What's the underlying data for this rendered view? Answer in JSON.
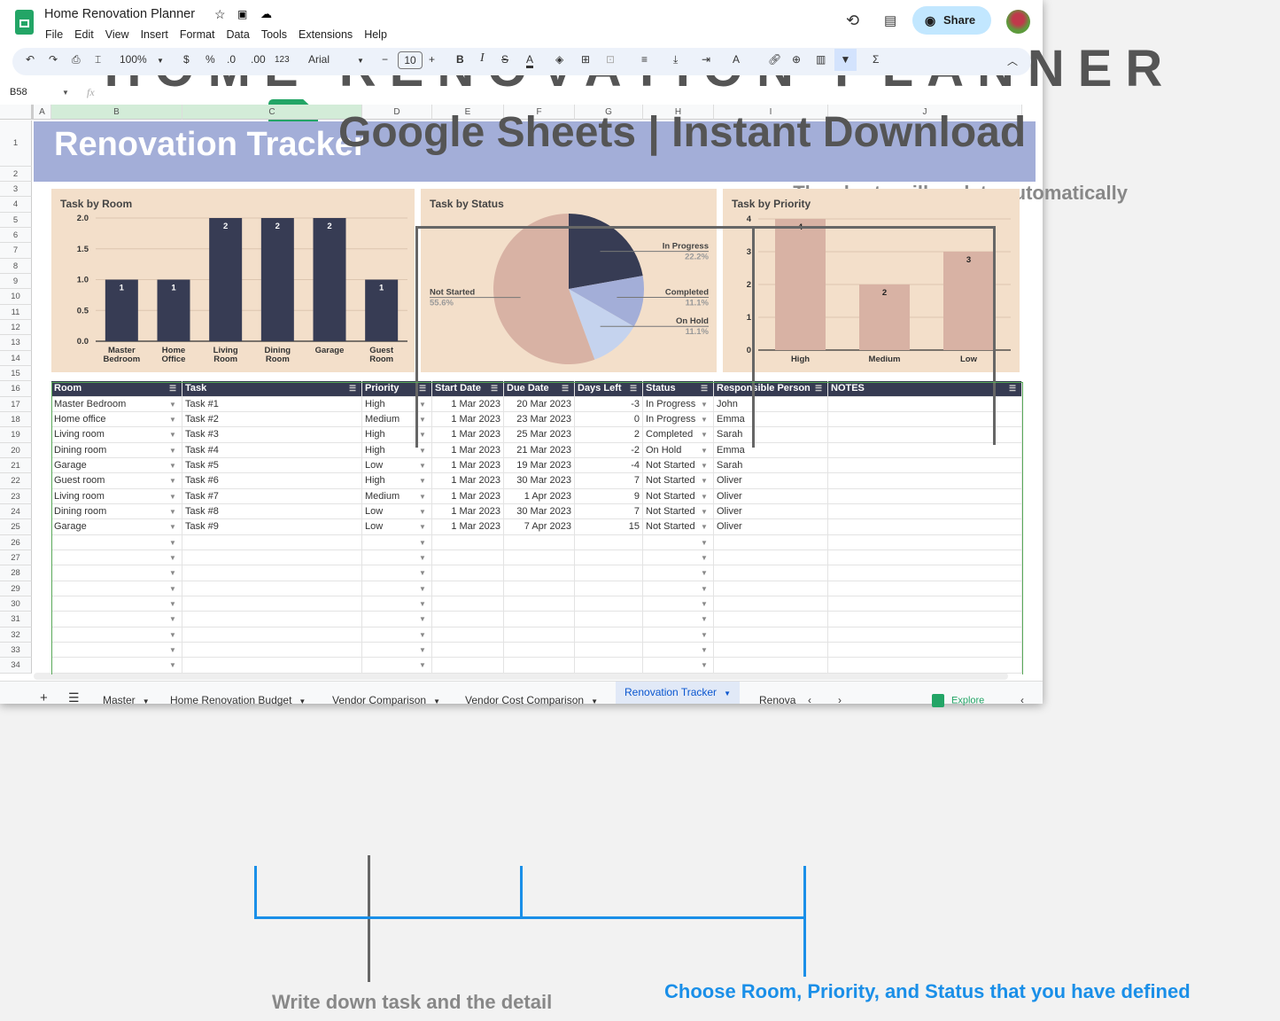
{
  "promo": {
    "title": "HOME RENOVATION PLANNER",
    "subtitle": "Google Sheets | Instant Download",
    "charts_note": "The charts will update automatically",
    "task_note": "Write down task and the detail",
    "choose_note": "Choose Room, Priority, and Status that you have defined"
  },
  "app": {
    "doc_title": "Home Renovation Planner",
    "menu": [
      "File",
      "Edit",
      "View",
      "Insert",
      "Format",
      "Data",
      "Tools",
      "Extensions",
      "Help"
    ],
    "share": "Share",
    "zoom": "100%",
    "currency": "$",
    "percent": "%",
    "dec_less": ".0",
    "dec_more": ".00",
    "format_num": "123",
    "font": "Arial",
    "font_size": "10",
    "cell_ref": "B58",
    "fx": "fx"
  },
  "columns": [
    "A",
    "B",
    "C",
    "D",
    "E",
    "F",
    "G",
    "H",
    "I",
    "J"
  ],
  "banner": "Renovation Tracker",
  "table": {
    "headers": [
      "Room",
      "Task",
      "Priority",
      "Start Date",
      "Due Date",
      "Days Left",
      "Status",
      "Responsible Person",
      "NOTES"
    ],
    "rows": [
      [
        "Master Bedroom",
        "Task #1",
        "High",
        "1 Mar 2023",
        "20 Mar 2023",
        "-3",
        "In Progress",
        "John",
        ""
      ],
      [
        "Home office",
        "Task #2",
        "Medium",
        "1 Mar 2023",
        "23 Mar 2023",
        "0",
        "In Progress",
        "Emma",
        ""
      ],
      [
        "Living room",
        "Task #3",
        "High",
        "1 Mar 2023",
        "25 Mar 2023",
        "2",
        "Completed",
        "Sarah",
        ""
      ],
      [
        "Dining room",
        "Task #4",
        "High",
        "1 Mar 2023",
        "21 Mar 2023",
        "-2",
        "On Hold",
        "Emma",
        ""
      ],
      [
        "Garage",
        "Task #5",
        "Low",
        "1 Mar 2023",
        "19 Mar 2023",
        "-4",
        "Not Started",
        "Sarah",
        ""
      ],
      [
        "Guest room",
        "Task #6",
        "High",
        "1 Mar 2023",
        "30 Mar 2023",
        "7",
        "Not Started",
        "Oliver",
        ""
      ],
      [
        "Living room",
        "Task #7",
        "Medium",
        "1 Mar 2023",
        "1 Apr 2023",
        "9",
        "Not Started",
        "Oliver",
        ""
      ],
      [
        "Dining room",
        "Task #8",
        "Low",
        "1 Mar 2023",
        "30 Mar 2023",
        "7",
        "Not Started",
        "Oliver",
        ""
      ],
      [
        "Garage",
        "Task #9",
        "Low",
        "1 Mar 2023",
        "7 Apr 2023",
        "15",
        "Not Started",
        "Oliver",
        ""
      ]
    ]
  },
  "tabs": [
    "Master",
    "Home Renovation Budget",
    "Vendor Comparison",
    "Vendor Cost Comparison",
    "Renovation Tracker",
    "Renova"
  ],
  "active_tab": "Renovation Tracker",
  "explore": "Explore",
  "colors": {
    "banner": "#a3aed8",
    "dark": "#373c54",
    "chart_bg": "#f3dfca",
    "blue_annot": "#1a8fe8",
    "sheets_green": "#23a566"
  },
  "chart_data": [
    {
      "type": "bar",
      "title": "Task by Room",
      "categories": [
        "Master Bedroom",
        "Home office",
        "Living room",
        "Dining room",
        "Garage",
        "Guest room"
      ],
      "values": [
        1,
        1,
        2,
        2,
        2,
        1
      ],
      "ylim": [
        0,
        2
      ],
      "yticks": [
        "0.0",
        "0.5",
        "1.0",
        "1.5",
        "2.0"
      ],
      "color": "#373c54"
    },
    {
      "type": "pie",
      "title": "Task by Status",
      "slices": [
        {
          "label": "In Progress",
          "value": 22.2,
          "pct": "22.2%",
          "color": "#373c54"
        },
        {
          "label": "Completed",
          "value": 11.1,
          "pct": "11.1%",
          "color": "#a3aed8"
        },
        {
          "label": "On Hold",
          "value": 11.1,
          "pct": "11.1%",
          "color": "#c5d3ee"
        },
        {
          "label": "Not Started",
          "value": 55.6,
          "pct": "55.6%",
          "color": "#d8b2a4"
        }
      ]
    },
    {
      "type": "bar",
      "title": "Task by Priority",
      "categories": [
        "High",
        "Medium",
        "Low"
      ],
      "values": [
        4,
        2,
        3
      ],
      "ylim": [
        0,
        4
      ],
      "yticks": [
        "0",
        "1",
        "2",
        "3",
        "4"
      ],
      "color": "#d8b2a4"
    }
  ]
}
